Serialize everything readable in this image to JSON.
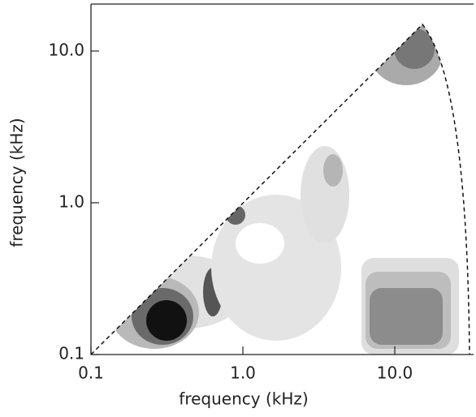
{
  "chart_data": {
    "type": "contour",
    "xlabel": "frequency (kHz)",
    "ylabel": "frequency (kHz)",
    "xscale": "log",
    "yscale": "log",
    "xlim": [
      0.1,
      33
    ],
    "ylim": [
      0.1,
      20.4
    ],
    "xticks": [
      0.1,
      {
        "value": 1,
        "label": "1.0"
      },
      {
        "value": 10,
        "label": "10.0"
      }
    ],
    "yticks": [
      0.1,
      {
        "value": 1,
        "label": "1.0"
      },
      {
        "value": 10,
        "label": "10.0"
      }
    ]
  }
}
